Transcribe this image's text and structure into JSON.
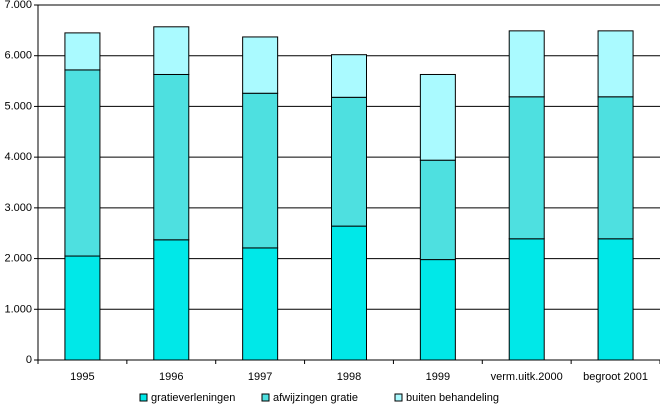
{
  "chart_data": {
    "type": "bar",
    "stacked": true,
    "categories": [
      "1995",
      "1996",
      "1997",
      "1998",
      "1999",
      "verm.uitk.2000",
      "begroot 2001"
    ],
    "series": [
      {
        "name": "gratieverleningen",
        "color": "#00e8e8",
        "values": [
          2050,
          2370,
          2210,
          2640,
          1980,
          2390,
          2390
        ]
      },
      {
        "name": "afwijzingen gratie",
        "color": "#4ee0e0",
        "values": [
          3670,
          3260,
          3050,
          2540,
          1960,
          2800,
          2800
        ]
      },
      {
        "name": "buiten behandeling",
        "color": "#aafaff",
        "values": [
          730,
          940,
          1110,
          840,
          1690,
          1300,
          1300
        ]
      }
    ],
    "ylim": [
      0,
      7000
    ],
    "yticks": [
      0,
      1000,
      2000,
      3000,
      4000,
      5000,
      6000,
      7000
    ],
    "ytick_labels": [
      "0",
      "1.000",
      "2.000",
      "3.000",
      "4.000",
      "5.000",
      "6.000",
      "7.000"
    ],
    "grid": true,
    "legend_position": "bottom",
    "title": "",
    "xlabel": "",
    "ylabel": ""
  }
}
